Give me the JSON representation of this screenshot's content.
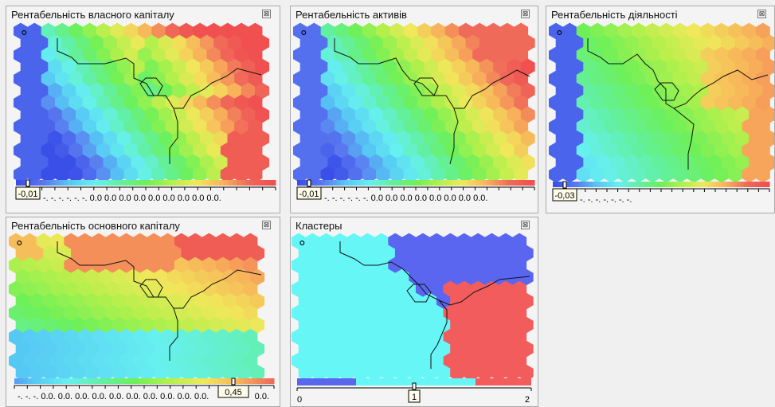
{
  "panels": [
    {
      "id": "p0",
      "title": "Рентабельність власного капіталу",
      "close_icon": "close-icon",
      "value_box": "-0,01",
      "scale_labels": "-. -. -. -. -. -. 0.0 0.0 0.0 0.0 0.0 0.0 0.0 0.0 0.0."
    },
    {
      "id": "p1",
      "title": "Рентабельність активів",
      "close_icon": "close-icon",
      "value_box": "-0,01",
      "scale_labels": "-. -. -. -. -. -. 0.0 0.0 0.0 0.0 0.0 0.0 0.0 0.0."
    },
    {
      "id": "p2",
      "title": "Рентабельність діяльності",
      "close_icon": "close-icon",
      "value_box": "-0,03",
      "scale_labels": "-. -. -. -. -. -. -."
    },
    {
      "id": "p3",
      "title": "Рентабельність основного капіталу",
      "close_icon": "close-icon",
      "value_box": "0,45",
      "scale_labels_left": "-. -. -. 0.0. 0.0. 0.0. 0.0. 0.0. 0.0. 0.0. 0.0. 0.0. 0.0.",
      "scale_labels_right": "0.0."
    },
    {
      "id": "p4",
      "title": "Кластеры",
      "close_icon": "close-icon",
      "value_box": "1",
      "scale_min": "0",
      "scale_max": "2"
    }
  ],
  "colors": {
    "gradient": [
      "#3a4fe8",
      "#5a78f0",
      "#56c8f4",
      "#66f0f0",
      "#62f0a0",
      "#6ef058",
      "#b4f04c",
      "#f0e85a",
      "#f8b45a",
      "#f06a5a",
      "#f05050"
    ],
    "cluster_palette": [
      "#5a66f0",
      "#66f6f6",
      "#f25c5c"
    ]
  }
}
